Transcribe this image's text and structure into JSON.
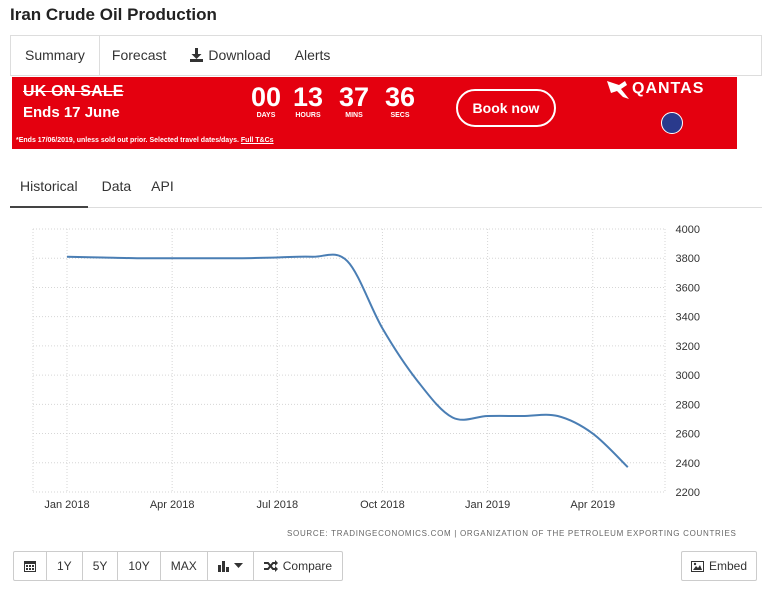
{
  "page": {
    "title": "Iran Crude Oil Production"
  },
  "nav": {
    "summary": "Summary",
    "forecast": "Forecast",
    "download": "Download",
    "alerts": "Alerts"
  },
  "ad": {
    "headline": "UK ON SALE",
    "ends": "Ends 17 June",
    "countdown": [
      {
        "value": "00",
        "label": "DAYS"
      },
      {
        "value": "13",
        "label": "HOURS"
      },
      {
        "value": "37",
        "label": "MINS"
      },
      {
        "value": "36",
        "label": "SECS"
      }
    ],
    "book": "Book now",
    "brand": "QANTAS",
    "fine_print": "*Ends 17/06/2019, unless sold out prior. Selected travel dates/days.",
    "fine_link": "Full T&Cs",
    "colors": {
      "background": "#e4000f",
      "text": "#ffffff"
    }
  },
  "tabs": {
    "historical": "Historical",
    "data": "Data",
    "api": "API"
  },
  "chart_data": {
    "type": "line",
    "x_ticks": [
      "Jan 2018",
      "Apr 2018",
      "Jul 2018",
      "Oct 2018",
      "Jan 2019",
      "Apr 2019"
    ],
    "y_ticks": [
      4000,
      3800,
      3600,
      3400,
      3200,
      3000,
      2800,
      2600,
      2400,
      2200
    ],
    "ylim": [
      2200,
      4000
    ],
    "grid": true,
    "line_color": "#4a7eb4",
    "series": [
      {
        "x": [
          "2018-01",
          "2018-02",
          "2018-03",
          "2018-04",
          "2018-05",
          "2018-06",
          "2018-07",
          "2018-08",
          "2018-09",
          "2018-10",
          "2018-11",
          "2018-12",
          "2019-01",
          "2019-02",
          "2019-03",
          "2019-04",
          "2019-05"
        ],
        "values": [
          3810,
          3805,
          3800,
          3800,
          3800,
          3800,
          3805,
          3810,
          3780,
          3320,
          2960,
          2710,
          2720,
          2720,
          2720,
          2600,
          2370
        ]
      }
    ],
    "source": "SOURCE: TRADINGECONOMICS.COM | ORGANIZATION OF THE PETROLEUM EXPORTING COUNTRIES"
  },
  "toolbar": {
    "y1": "1Y",
    "y5": "5Y",
    "y10": "10Y",
    "max": "MAX",
    "compare": "Compare",
    "embed": "Embed"
  }
}
